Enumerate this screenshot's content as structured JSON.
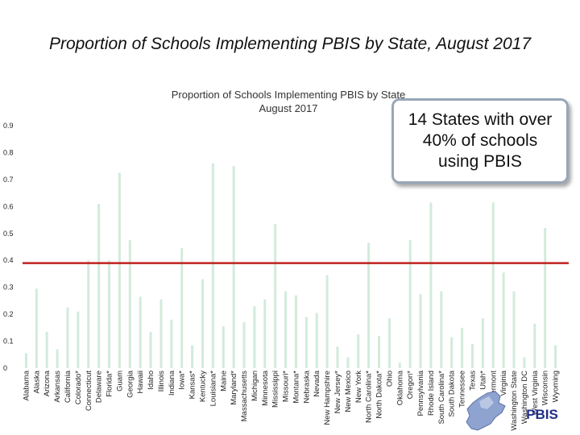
{
  "slide": {
    "title": "Proportion of Schools Implementing PBIS by State, August 2017",
    "callout": "14 States with over 40% of schools using PBIS"
  },
  "logo": {
    "text": "PBIS"
  },
  "colors": {
    "bar": "#d2ebdb",
    "threshold": "#c0211f",
    "callout_border": "#98a7b6",
    "text": "#222222"
  },
  "chart_data": {
    "type": "bar",
    "title": "Proportion of Schools Implementing PBIS by State",
    "subtitle": "August 2017",
    "xlabel": "",
    "ylabel": "",
    "ylim": [
      0,
      0.9
    ],
    "yticks": [
      0,
      0.1,
      0.2,
      0.3,
      0.4,
      0.5,
      0.6,
      0.7,
      0.8,
      0.9
    ],
    "ytick_labels": [
      "0",
      "0.1",
      "0.2",
      "0.3",
      "0.4",
      "0.5",
      "0.6",
      "0.7",
      "0.8",
      "0.9"
    ],
    "grid": false,
    "threshold": 0.39,
    "categories": [
      "Alabama",
      "Alaska",
      "Arizona",
      "Arkansas",
      "California",
      "Colorado*",
      "Connecticut",
      "Delaware",
      "Florida*",
      "Guam",
      "Georgia",
      "Hawaii",
      "Idaho",
      "Illinois",
      "Indiana",
      "Iowa*",
      "Kansas*",
      "Kentucky",
      "Louisiana*",
      "Maine",
      "Maryland*",
      "Massachusetts",
      "Michigan",
      "Minnesota",
      "Mississippi",
      "Missouri*",
      "Montana*",
      "Nebraska",
      "Nevada",
      "New Hampshire",
      "New Jersey*",
      "New Mexico",
      "New York",
      "North Carolina*",
      "North Dakota*",
      "Ohio",
      "Oklahoma",
      "Oregon*",
      "Pennsylvania",
      "Rhode Island",
      "South Carolina*",
      "South Dakota",
      "Tennessee",
      "Texas",
      "Utah*",
      "Vermont",
      "Virginia",
      "Washington State",
      "Washington DC",
      "West Virginia",
      "Wisconsin",
      "Wyoming"
    ],
    "values": [
      0.055,
      0.295,
      0.135,
      0.07,
      0.225,
      0.21,
      0.4,
      0.61,
      0.4,
      0.725,
      0.475,
      0.265,
      0.135,
      0.255,
      0.18,
      0.445,
      0.085,
      0.33,
      0.76,
      0.155,
      0.75,
      0.17,
      0.23,
      0.255,
      0.535,
      0.285,
      0.27,
      0.19,
      0.205,
      0.345,
      0.08,
      0.04,
      0.125,
      0.465,
      0.12,
      0.185,
      0.02,
      0.475,
      0.275,
      0.615,
      0.285,
      0.115,
      0.15,
      0.09,
      0.185,
      0.615,
      0.355,
      0.285,
      0.04,
      0.165,
      0.52,
      0.085
    ]
  }
}
